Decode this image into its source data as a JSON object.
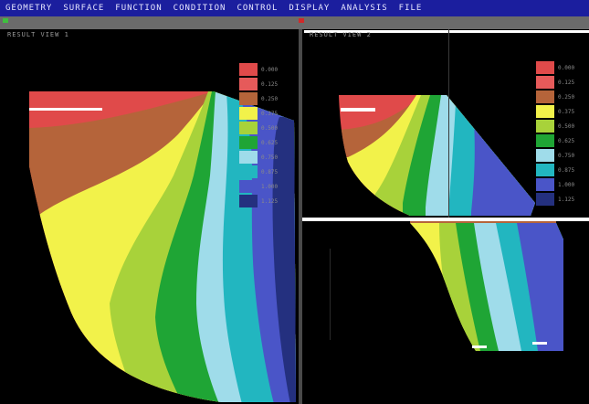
{
  "menubar": {
    "items": [
      "GEOMETRY",
      "SURFACE",
      "FUNCTION",
      "CONDITION",
      "CONTROL",
      "DISPLAY",
      "ANALYSIS",
      "FILE"
    ]
  },
  "viewports": {
    "left": {
      "title": "RESULT VIEW 1"
    },
    "right": {
      "title": "RESULT VIEW 2"
    }
  },
  "legend": {
    "left": [
      {
        "label": "0.000",
        "color": "#e04a4a"
      },
      {
        "label": "0.125",
        "color": "#e65a5a"
      },
      {
        "label": "0.250",
        "color": "#b5643a"
      },
      {
        "label": "0.375",
        "color": "#f2f24a"
      },
      {
        "label": "0.500",
        "color": "#a8d23a"
      },
      {
        "label": "0.625",
        "color": "#1fa535"
      },
      {
        "label": "0.750",
        "color": "#9fdcea"
      },
      {
        "label": "0.875",
        "color": "#22b6c0"
      },
      {
        "label": "1.000",
        "color": "#4a55c8"
      },
      {
        "label": "1.125",
        "color": "#24307f"
      }
    ],
    "right": [
      {
        "label": "0.000",
        "color": "#e04a4a"
      },
      {
        "label": "0.125",
        "color": "#e65a5a"
      },
      {
        "label": "0.250",
        "color": "#b5643a"
      },
      {
        "label": "0.375",
        "color": "#f2f24a"
      },
      {
        "label": "0.500",
        "color": "#a8d23a"
      },
      {
        "label": "0.625",
        "color": "#1fa535"
      },
      {
        "label": "0.750",
        "color": "#9fdcea"
      },
      {
        "label": "0.875",
        "color": "#22b6c0"
      },
      {
        "label": "1.000",
        "color": "#4a55c8"
      },
      {
        "label": "1.125",
        "color": "#24307f"
      }
    ]
  },
  "colors": {
    "menubar": "#1b1e9e",
    "background": "#000000",
    "toolbar": "#6b6b6b"
  }
}
